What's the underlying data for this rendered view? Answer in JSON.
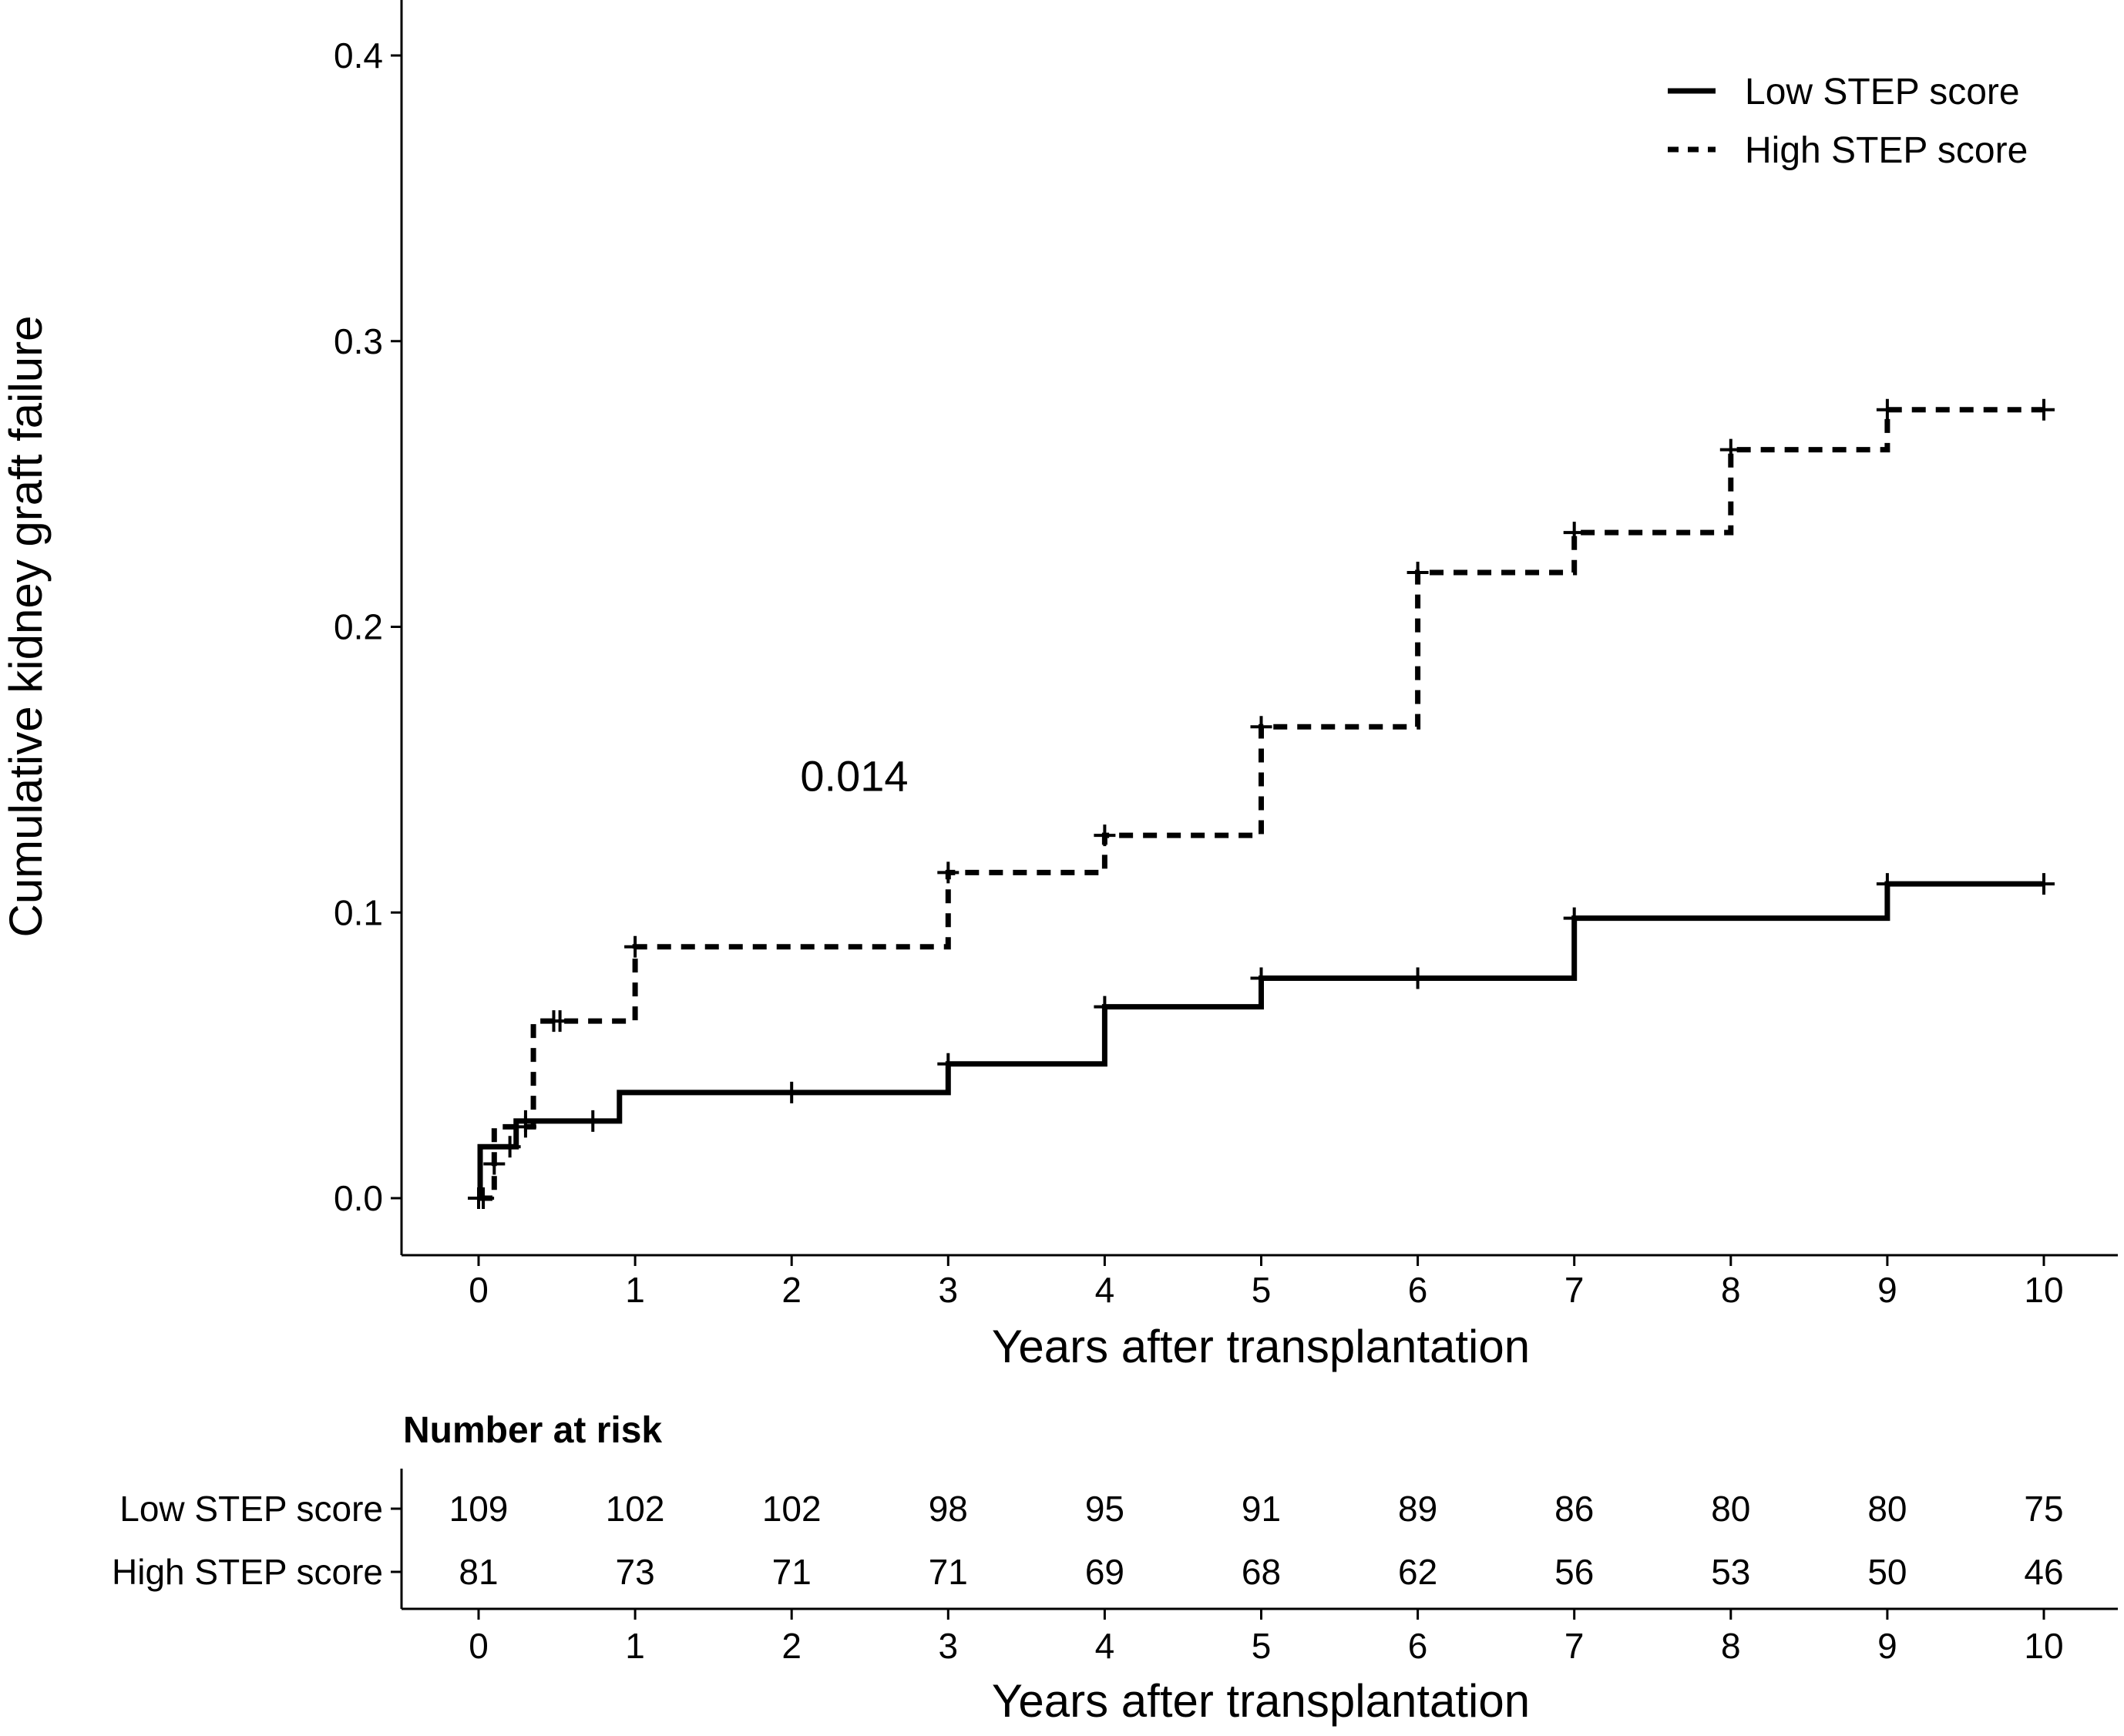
{
  "chart_data": {
    "type": "line",
    "subtype": "kaplan-meier-cumulative-incidence",
    "xlabel": "Years after transplantation",
    "ylabel": "Cumulative kidney graft failure",
    "xlim": [
      -0.5,
      10.5
    ],
    "ylim": [
      -0.02,
      0.42
    ],
    "x_ticks": [
      "0",
      "1",
      "2",
      "3",
      "4",
      "5",
      "6",
      "7",
      "8",
      "9",
      "10"
    ],
    "y_ticks": [
      "0.0",
      "0.1",
      "0.2",
      "0.3",
      "0.4"
    ],
    "annotation": "0.014",
    "annotation_pos": {
      "x": 2.4,
      "y": 0.148
    },
    "legend": {
      "placement": "top-right"
    },
    "series": [
      {
        "name": "Low STEP score",
        "linestyle": "solid",
        "steps": [
          [
            0,
            0
          ],
          [
            0.01,
            0.018
          ],
          [
            0.24,
            0.027
          ],
          [
            0.9,
            0.037
          ],
          [
            3,
            0.047
          ],
          [
            4,
            0.067
          ],
          [
            5,
            0.077
          ],
          [
            7,
            0.098
          ],
          [
            9,
            0.11
          ],
          [
            10,
            0.11
          ]
        ],
        "censors": [
          [
            0,
            0
          ],
          [
            0.2,
            0.018
          ],
          [
            0.3,
            0.027
          ],
          [
            0.73,
            0.027
          ],
          [
            2,
            0.037
          ],
          [
            3,
            0.047
          ],
          [
            4,
            0.067
          ],
          [
            5,
            0.077
          ],
          [
            6,
            0.077
          ],
          [
            7,
            0.098
          ],
          [
            9,
            0.11
          ],
          [
            10,
            0.11
          ]
        ]
      },
      {
        "name": "High STEP score",
        "linestyle": "dashed",
        "steps": [
          [
            0,
            0
          ],
          [
            0.1,
            0.025
          ],
          [
            0.35,
            0.062
          ],
          [
            1,
            0.088
          ],
          [
            3,
            0.114
          ],
          [
            4,
            0.127
          ],
          [
            5,
            0.165
          ],
          [
            6,
            0.219
          ],
          [
            7,
            0.233
          ],
          [
            8,
            0.262
          ],
          [
            9,
            0.276
          ],
          [
            10,
            0.276
          ]
        ],
        "censors": [
          [
            0.03,
            0
          ],
          [
            0.1,
            0.012
          ],
          [
            0.3,
            0.025
          ],
          [
            0.48,
            0.062
          ],
          [
            0.52,
            0.062
          ],
          [
            1,
            0.088
          ],
          [
            3,
            0.114
          ],
          [
            4,
            0.127
          ],
          [
            5,
            0.165
          ],
          [
            6,
            0.219
          ],
          [
            7,
            0.233
          ],
          [
            8,
            0.262
          ],
          [
            9,
            0.276
          ],
          [
            10,
            0.276
          ]
        ]
      }
    ],
    "risk_table": {
      "title": "Number at risk",
      "xlabel": "Years after transplantation",
      "times": [
        "0",
        "1",
        "2",
        "3",
        "4",
        "5",
        "6",
        "7",
        "8",
        "9",
        "10"
      ],
      "rows": [
        {
          "label": "Low STEP score",
          "counts": [
            "109",
            "102",
            "102",
            "98",
            "95",
            "91",
            "89",
            "86",
            "80",
            "80",
            "75"
          ]
        },
        {
          "label": "High STEP score",
          "counts": [
            "81",
            "73",
            "71",
            "71",
            "69",
            "68",
            "62",
            "56",
            "53",
            "50",
            "46"
          ]
        }
      ]
    }
  }
}
